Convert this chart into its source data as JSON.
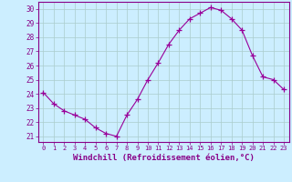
{
  "x": [
    0,
    1,
    2,
    3,
    4,
    5,
    6,
    7,
    8,
    9,
    10,
    11,
    12,
    13,
    14,
    15,
    16,
    17,
    18,
    19,
    20,
    21,
    22,
    23
  ],
  "y": [
    24.1,
    23.3,
    22.8,
    22.5,
    22.2,
    21.6,
    21.2,
    21.0,
    22.5,
    23.6,
    25.0,
    26.2,
    27.5,
    28.5,
    29.3,
    29.7,
    30.1,
    29.9,
    29.3,
    28.5,
    26.7,
    25.2,
    25.0,
    24.3
  ],
  "line_color": "#990099",
  "marker": "+",
  "markersize": 4,
  "linewidth": 0.8,
  "bg_color": "#cceeff",
  "grid_color": "#aacccc",
  "tick_color": "#880088",
  "xlabel": "Windchill (Refroidissement éolien,°C)",
  "xlabel_fontsize": 6.5,
  "ylabel_ticks": [
    21,
    22,
    23,
    24,
    25,
    26,
    27,
    28,
    29,
    30
  ],
  "xlim": [
    -0.5,
    23.5
  ],
  "ylim": [
    20.6,
    30.5
  ]
}
